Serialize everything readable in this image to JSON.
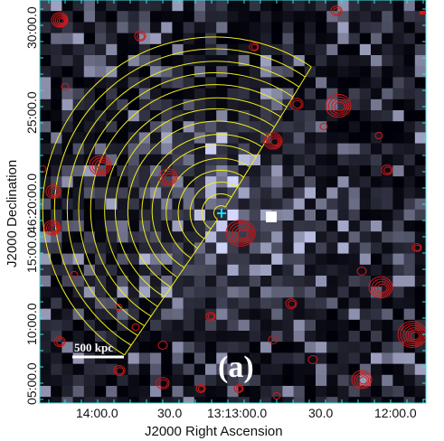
{
  "figure": {
    "panel_label": "(a)",
    "scale_bar_label": "500 kpc",
    "x_axis": {
      "label": "J2000 Right Ascension",
      "ticks": [
        "14:00.0",
        "30.0",
        "13:13:00.0",
        "30.0",
        "12:00.0"
      ]
    },
    "y_axis": {
      "label": "J2000 Declination",
      "ticks": [
        "30:00.0",
        "25:00.0",
        "46:20:00.0",
        "15:00.0",
        "10:00.0",
        "05:00.0"
      ]
    },
    "colors": {
      "contours": "#d01818",
      "annuli": "#f2ee1a",
      "frame_ticks": "#40e0e0",
      "center_marker": "#00e5ff"
    },
    "overlays": {
      "sector_annuli": "yellow annular sector regions",
      "contours": "red radio contours",
      "center_marker": "cyan cross"
    }
  }
}
